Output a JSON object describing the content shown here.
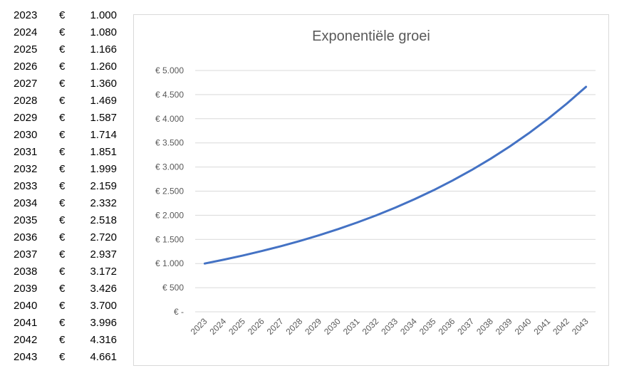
{
  "table": {
    "currency_symbol": "€",
    "rows": [
      {
        "year": "2023",
        "value": "1.000"
      },
      {
        "year": "2024",
        "value": "1.080"
      },
      {
        "year": "2025",
        "value": "1.166"
      },
      {
        "year": "2026",
        "value": "1.260"
      },
      {
        "year": "2027",
        "value": "1.360"
      },
      {
        "year": "2028",
        "value": "1.469"
      },
      {
        "year": "2029",
        "value": "1.587"
      },
      {
        "year": "2030",
        "value": "1.714"
      },
      {
        "year": "2031",
        "value": "1.851"
      },
      {
        "year": "2032",
        "value": "1.999"
      },
      {
        "year": "2033",
        "value": "2.159"
      },
      {
        "year": "2034",
        "value": "2.332"
      },
      {
        "year": "2035",
        "value": "2.518"
      },
      {
        "year": "2036",
        "value": "2.720"
      },
      {
        "year": "2037",
        "value": "2.937"
      },
      {
        "year": "2038",
        "value": "3.172"
      },
      {
        "year": "2039",
        "value": "3.426"
      },
      {
        "year": "2040",
        "value": "3.700"
      },
      {
        "year": "2041",
        "value": "3.996"
      },
      {
        "year": "2042",
        "value": "4.316"
      },
      {
        "year": "2043",
        "value": "4.661"
      }
    ]
  },
  "chart_data": {
    "type": "line",
    "title": "Exponentiële groei",
    "xlabel": "",
    "ylabel": "",
    "x": [
      "2023",
      "2024",
      "2025",
      "2026",
      "2027",
      "2028",
      "2029",
      "2030",
      "2031",
      "2032",
      "2033",
      "2034",
      "2035",
      "2036",
      "2037",
      "2038",
      "2039",
      "2040",
      "2041",
      "2042",
      "2043"
    ],
    "series": [
      {
        "values": [
          1000,
          1080,
          1166,
          1260,
          1360,
          1469,
          1587,
          1714,
          1851,
          1999,
          2159,
          2332,
          2518,
          2720,
          2937,
          3172,
          3426,
          3700,
          3996,
          4316,
          4661
        ],
        "color": "#4472c4"
      }
    ],
    "ylim": [
      0,
      5000
    ],
    "y_ticks": [
      0,
      500,
      1000,
      1500,
      2000,
      2500,
      3000,
      3500,
      4000,
      4500,
      5000
    ],
    "y_tick_labels": [
      "€ -",
      "€ 500",
      "€ 1.000",
      "€ 1.500",
      "€ 2.000",
      "€ 2.500",
      "€ 3.000",
      "€ 3.500",
      "€ 4.000",
      "€ 4.500",
      "€ 5.000"
    ],
    "grid": true,
    "legend": "none",
    "colors": {
      "gridline": "#d9d9d9",
      "axis_text": "#595959",
      "line": "#4472c4"
    }
  }
}
